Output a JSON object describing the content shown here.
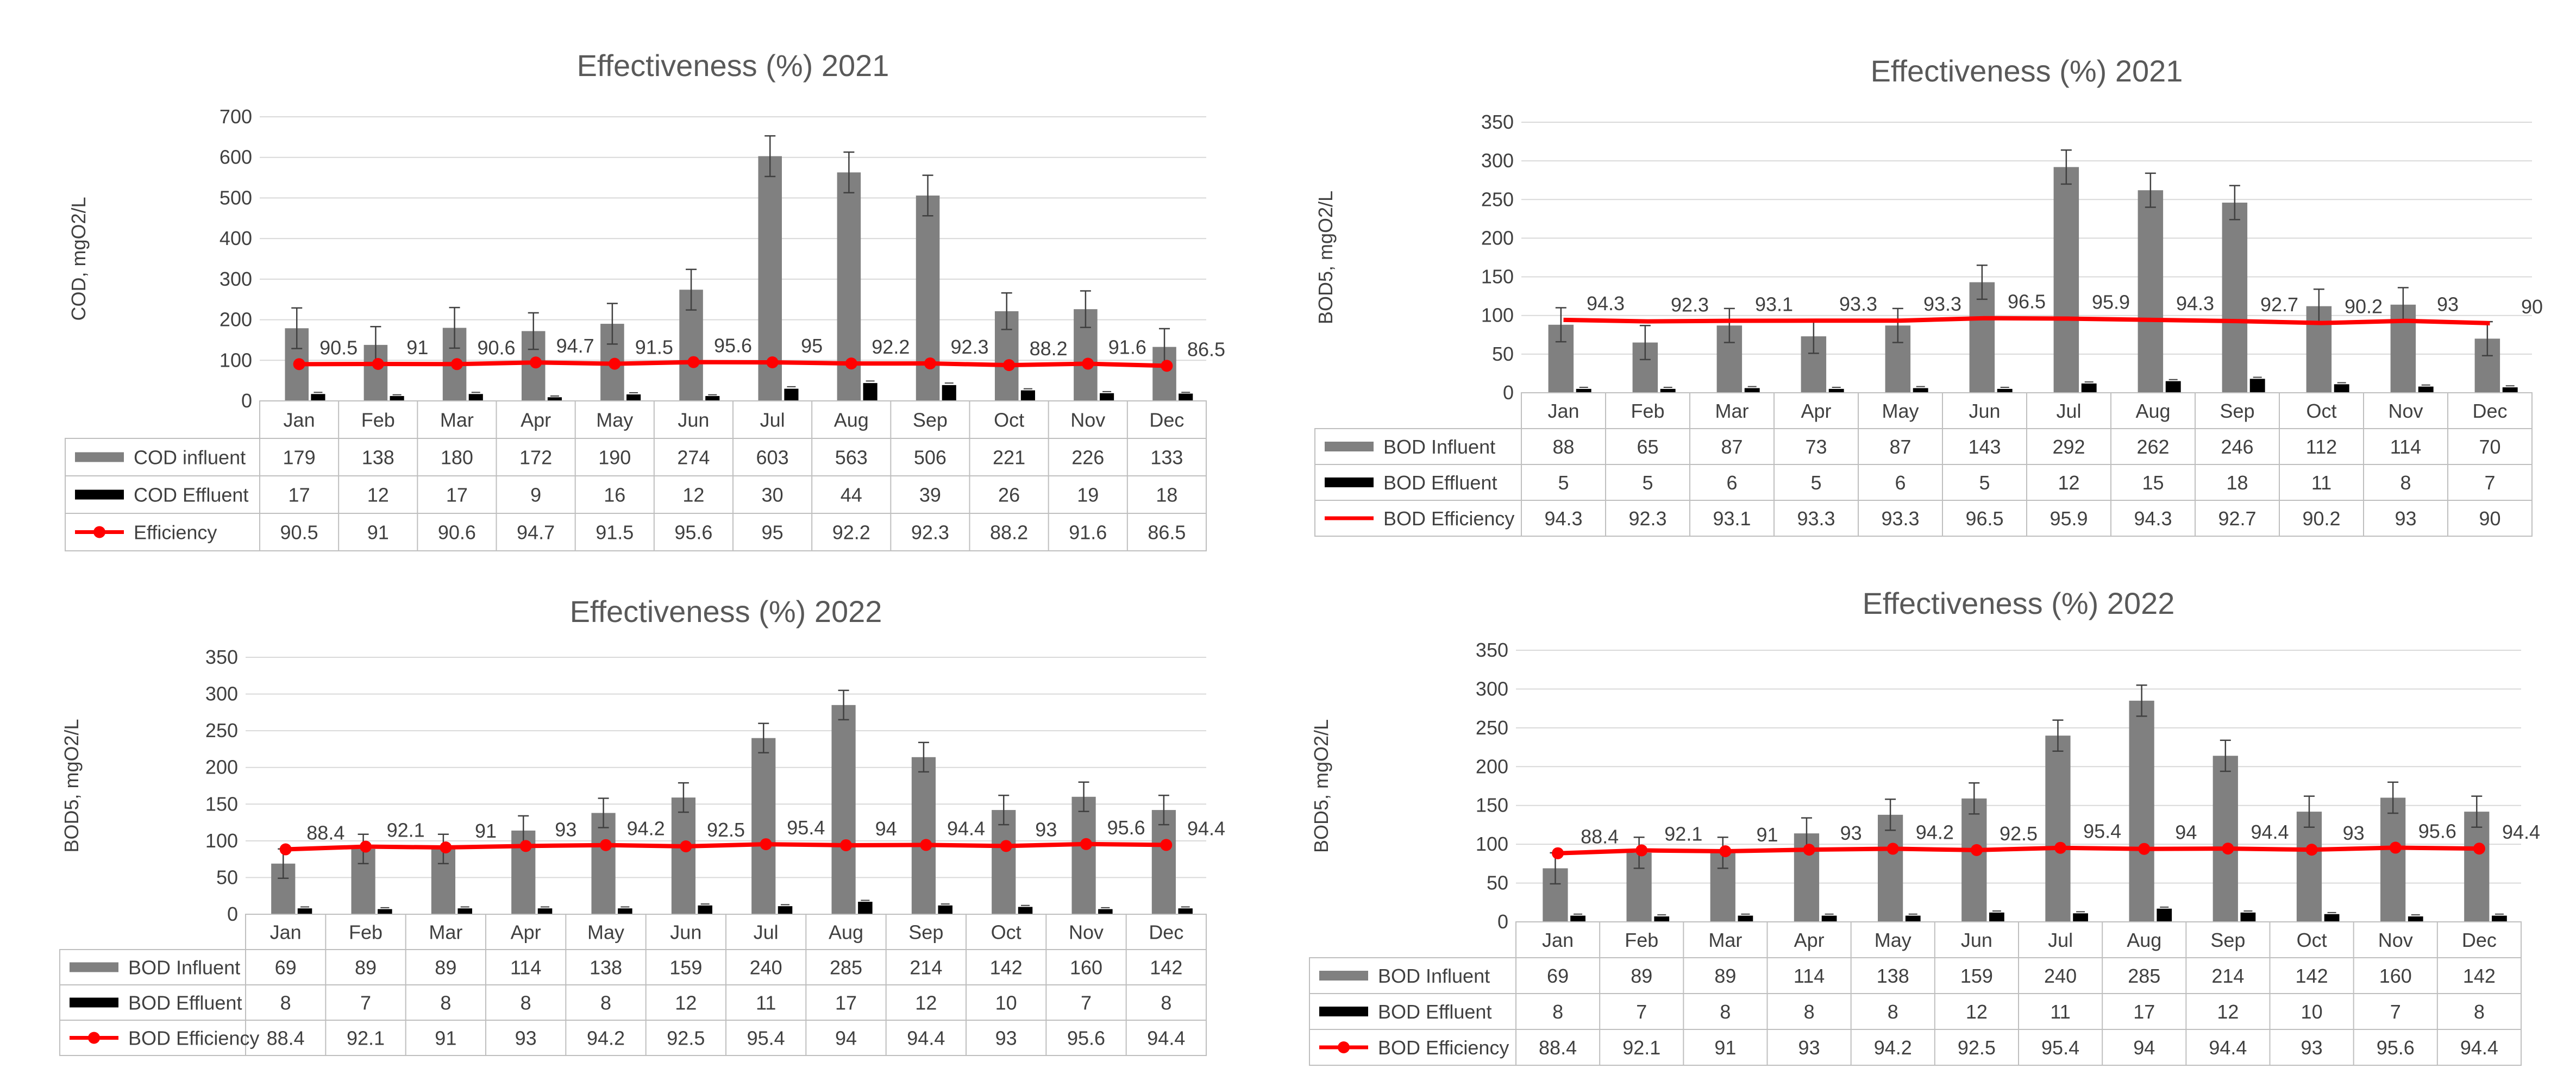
{
  "chart_data": [
    {
      "type": "bar",
      "title": "Effectiveness (%) 2021",
      "ylabel": "COD, mgO2/L",
      "ylim": [
        0,
        700
      ],
      "yticks": [
        0,
        100,
        200,
        300,
        400,
        500,
        600,
        700
      ],
      "categories": [
        "Jan",
        "Feb",
        "Mar",
        "Apr",
        "May",
        "Jun",
        "Jul",
        "Aug",
        "Sep",
        "Oct",
        "Nov",
        "Dec"
      ],
      "series": [
        {
          "name": "COD influent",
          "kind": "bar",
          "color": "#808080",
          "values": [
            179,
            138,
            180,
            172,
            190,
            274,
            603,
            563,
            506,
            221,
            226,
            133
          ],
          "errors": [
            50,
            45,
            50,
            45,
            50,
            50,
            50,
            50,
            50,
            45,
            45,
            45
          ]
        },
        {
          "name": "COD Effluent",
          "kind": "bar",
          "color": "#000000",
          "values": [
            17,
            12,
            17,
            9,
            16,
            12,
            30,
            44,
            39,
            26,
            19,
            18
          ],
          "errors": [
            4,
            3,
            4,
            3,
            4,
            3,
            5,
            5,
            5,
            4,
            4,
            3
          ]
        },
        {
          "name": "Efficiency",
          "kind": "line",
          "color": "#ff0000",
          "marker": true,
          "values": [
            90.5,
            91,
            90.6,
            94.7,
            91.5,
            95.6,
            95,
            92.2,
            92.3,
            88.2,
            91.6,
            86.5
          ]
        }
      ]
    },
    {
      "type": "bar",
      "title": "Effectiveness (%) 2021",
      "ylabel": "BOD5, mgO2/L",
      "ylim": [
        0,
        350
      ],
      "yticks": [
        0,
        50,
        100,
        150,
        200,
        250,
        300,
        350
      ],
      "categories": [
        "Jan",
        "Feb",
        "Mar",
        "Apr",
        "May",
        "Jun",
        "Jul",
        "Aug",
        "Sep",
        "Oct",
        "Nov",
        "Dec"
      ],
      "series": [
        {
          "name": "BOD Influent",
          "kind": "bar",
          "color": "#808080",
          "values": [
            88,
            65,
            87,
            73,
            87,
            143,
            292,
            262,
            246,
            112,
            114,
            70
          ],
          "errors": [
            22,
            22,
            22,
            22,
            22,
            22,
            22,
            22,
            22,
            22,
            22,
            22
          ]
        },
        {
          "name": "BOD Effluent",
          "kind": "bar",
          "color": "#000000",
          "values": [
            5,
            5,
            6,
            5,
            6,
            5,
            12,
            15,
            18,
            11,
            8,
            7
          ],
          "errors": [
            2,
            2,
            2,
            2,
            2,
            2,
            2,
            2,
            2,
            2,
            2,
            2
          ]
        },
        {
          "name": "BOD Efficiency",
          "kind": "line",
          "color": "#ff0000",
          "marker": false,
          "values": [
            94.3,
            92.3,
            93.1,
            93.3,
            93.3,
            96.5,
            95.9,
            94.3,
            92.7,
            90.2,
            93,
            90
          ]
        }
      ]
    },
    {
      "type": "bar",
      "title": "Effectiveness (%) 2022",
      "ylabel": "BOD5, mgO2/L",
      "ylim": [
        0,
        350
      ],
      "yticks": [
        0,
        50,
        100,
        150,
        200,
        250,
        300,
        350
      ],
      "categories": [
        "Jan",
        "Feb",
        "Mar",
        "Apr",
        "May",
        "Jun",
        "Jul",
        "Aug",
        "Sep",
        "Oct",
        "Nov",
        "Dec"
      ],
      "series": [
        {
          "name": "BOD Influent",
          "kind": "bar",
          "color": "#808080",
          "values": [
            69,
            89,
            89,
            114,
            138,
            159,
            240,
            285,
            214,
            142,
            160,
            142
          ],
          "errors": [
            20,
            20,
            20,
            20,
            20,
            20,
            20,
            20,
            20,
            20,
            20,
            20
          ]
        },
        {
          "name": "BOD Effluent",
          "kind": "bar",
          "color": "#000000",
          "values": [
            8,
            7,
            8,
            8,
            8,
            12,
            11,
            17,
            12,
            10,
            7,
            8
          ],
          "errors": [
            2,
            2,
            2,
            2,
            2,
            2,
            2,
            2,
            2,
            2,
            2,
            2
          ]
        },
        {
          "name": "BOD Efficiency",
          "kind": "line",
          "color": "#ff0000",
          "marker": true,
          "values": [
            88.4,
            92.1,
            91,
            93,
            94.2,
            92.5,
            95.4,
            94,
            94.4,
            93,
            95.6,
            94.4
          ]
        }
      ]
    },
    {
      "type": "bar",
      "title": "Effectiveness (%) 2022",
      "ylabel": "BOD5, mgO2/L",
      "ylim": [
        0,
        350
      ],
      "yticks": [
        0,
        50,
        100,
        150,
        200,
        250,
        300,
        350
      ],
      "categories": [
        "Jan",
        "Feb",
        "Mar",
        "Apr",
        "May",
        "Jun",
        "Jul",
        "Aug",
        "Sep",
        "Oct",
        "Nov",
        "Dec"
      ],
      "series": [
        {
          "name": "BOD Influent",
          "kind": "bar",
          "color": "#808080",
          "values": [
            69,
            89,
            89,
            114,
            138,
            159,
            240,
            285,
            214,
            142,
            160,
            142
          ],
          "errors": [
            20,
            20,
            20,
            20,
            20,
            20,
            20,
            20,
            20,
            20,
            20,
            20
          ]
        },
        {
          "name": "BOD Effluent",
          "kind": "bar",
          "color": "#000000",
          "values": [
            8,
            7,
            8,
            8,
            8,
            12,
            11,
            17,
            12,
            10,
            7,
            8
          ],
          "errors": [
            2,
            2,
            2,
            2,
            2,
            2,
            2,
            2,
            2,
            2,
            2,
            2
          ]
        },
        {
          "name": "BOD Efficiency",
          "kind": "line",
          "color": "#ff0000",
          "marker": true,
          "values": [
            88.4,
            92.1,
            91,
            93,
            94.2,
            92.5,
            95.4,
            94,
            94.4,
            93,
            95.6,
            94.4
          ]
        }
      ]
    }
  ]
}
